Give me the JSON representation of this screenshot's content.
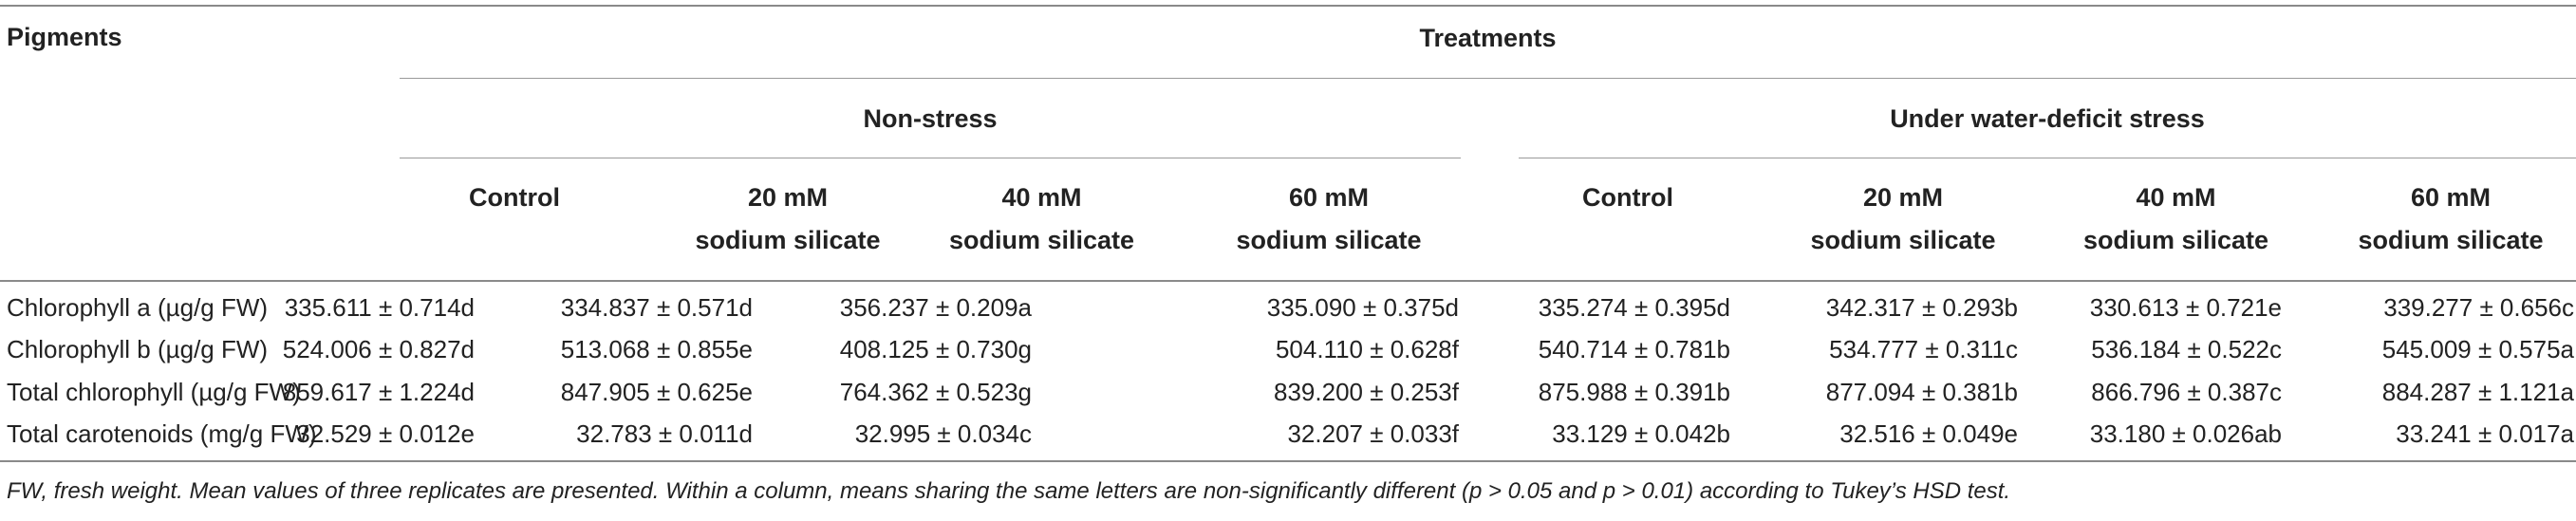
{
  "table": {
    "row_header": "Pigments",
    "treatments_header": "Treatments",
    "groups": [
      "Non-stress",
      "Under water-deficit stress"
    ],
    "columns": [
      {
        "line1": "Control",
        "line2": ""
      },
      {
        "line1": "20 mM",
        "line2": "sodium silicate"
      },
      {
        "line1": "40 mM",
        "line2": "sodium silicate"
      },
      {
        "line1": "60 mM",
        "line2": "sodium silicate"
      },
      {
        "line1": "Control",
        "line2": ""
      },
      {
        "line1": "20 mM",
        "line2": "sodium silicate"
      },
      {
        "line1": "40 mM",
        "line2": "sodium silicate"
      },
      {
        "line1": "60 mM",
        "line2": "sodium silicate"
      }
    ],
    "rows": [
      {
        "label": "Chlorophyll a (µg/g FW)",
        "cells": [
          "335.611 ± 0.714d",
          "334.837 ± 0.571d",
          "356.237 ± 0.209a",
          "335.090 ± 0.375d",
          "335.274 ± 0.395d",
          "342.317 ± 0.293b",
          "330.613 ± 0.721e",
          "339.277 ± 0.656c"
        ]
      },
      {
        "label": "Chlorophyll b (µg/g FW)",
        "cells": [
          "524.006 ± 0.827d",
          "513.068 ± 0.855e",
          "408.125 ± 0.730g",
          "504.110 ± 0.628f",
          "540.714 ± 0.781b",
          "534.777 ± 0.311c",
          "536.184 ± 0.522c",
          "545.009 ± 0.575a"
        ]
      },
      {
        "label": "Total chlorophyll (µg/g FW)",
        "cells": [
          "859.617 ± 1.224d",
          "847.905 ± 0.625e",
          "764.362 ± 0.523g",
          "839.200 ± 0.253f",
          "875.988 ± 0.391b",
          "877.094 ± 0.381b",
          "866.796 ± 0.387c",
          "884.287 ± 1.121a"
        ]
      },
      {
        "label": "Total carotenoids (mg/g FW)",
        "cells": [
          "32.529 ± 0.012e",
          "32.783 ± 0.011d",
          "32.995 ± 0.034c",
          "32.207 ± 0.033f",
          "33.129 ± 0.042b",
          "32.516 ± 0.049e",
          "33.180 ± 0.026ab",
          "33.241 ± 0.017a"
        ]
      }
    ],
    "footnote": "FW, fresh weight. Mean values of three replicates are presented. Within a column, means sharing the same letters are non-significantly different (p > 0.05 and p > 0.01) according to Tukey’s HSD test."
  }
}
